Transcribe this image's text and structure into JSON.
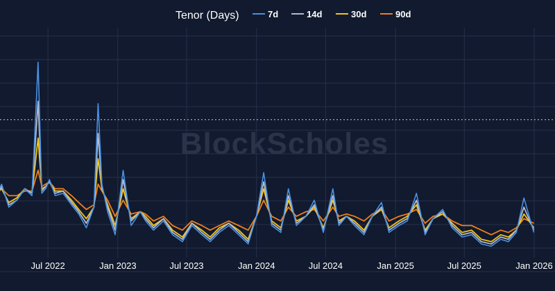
{
  "chart_data": {
    "type": "line",
    "title": "",
    "xlabel": "",
    "ylabel": "",
    "legend": {
      "title": "Tenor (Days)",
      "placement": "top-center"
    },
    "watermark": "BlockScholes",
    "grid": true,
    "y_tick_labels_visible": false,
    "reference_line": {
      "style": "dotted",
      "level": 0.6
    },
    "xlim": [
      "2022-01-01",
      "2026-01-01"
    ],
    "ylim": [
      0,
      1
    ],
    "x_ticks": [
      {
        "date": "2022-01-01",
        "label": "Jan 2022"
      },
      {
        "date": "2022-07-01",
        "label": "Jul 2022"
      },
      {
        "date": "2023-01-01",
        "label": "Jan 2023"
      },
      {
        "date": "2023-07-01",
        "label": "Jul 2023"
      },
      {
        "date": "2024-01-01",
        "label": "Jan 2024"
      },
      {
        "date": "2024-07-01",
        "label": "Jul 2024"
      },
      {
        "date": "2025-01-01",
        "label": "Jan 2025"
      },
      {
        "date": "2025-07-01",
        "label": "Jul 2025"
      },
      {
        "date": "2026-01-01",
        "label": "Jan 2026"
      }
    ],
    "dates": [
      "2022-01-01",
      "2022-01-20",
      "2022-02-10",
      "2022-03-01",
      "2022-03-20",
      "2022-04-10",
      "2022-05-01",
      "2022-05-20",
      "2022-06-05",
      "2022-06-15",
      "2022-06-25",
      "2022-07-05",
      "2022-07-20",
      "2022-08-10",
      "2022-09-01",
      "2022-09-20",
      "2022-10-10",
      "2022-10-30",
      "2022-11-10",
      "2022-11-20",
      "2022-12-05",
      "2022-12-25",
      "2023-01-15",
      "2023-02-05",
      "2023-03-01",
      "2023-03-15",
      "2023-04-05",
      "2023-05-01",
      "2023-05-25",
      "2023-06-20",
      "2023-07-15",
      "2023-08-10",
      "2023-09-01",
      "2023-09-25",
      "2023-10-20",
      "2023-11-15",
      "2023-12-10",
      "2024-01-01",
      "2024-01-20",
      "2024-02-10",
      "2024-03-05",
      "2024-03-25",
      "2024-04-15",
      "2024-05-10",
      "2024-06-01",
      "2024-06-25",
      "2024-07-20",
      "2024-08-05",
      "2024-08-25",
      "2024-09-15",
      "2024-10-10",
      "2024-11-01",
      "2024-11-25",
      "2024-12-15",
      "2025-01-10",
      "2025-02-01",
      "2025-02-25",
      "2025-03-20",
      "2025-04-10",
      "2025-05-05",
      "2025-05-30",
      "2025-06-25",
      "2025-07-20",
      "2025-08-15",
      "2025-09-10",
      "2025-10-05",
      "2025-10-25",
      "2025-11-15",
      "2025-12-05",
      "2025-12-31"
    ],
    "series": [
      {
        "name": "7d",
        "color": "#4a90e2",
        "values": [
          0.3,
          0.36,
          0.25,
          0.32,
          0.22,
          0.25,
          0.3,
          0.27,
          0.85,
          0.28,
          0.3,
          0.34,
          0.27,
          0.28,
          0.23,
          0.19,
          0.13,
          0.22,
          0.67,
          0.32,
          0.2,
          0.1,
          0.38,
          0.14,
          0.2,
          0.16,
          0.12,
          0.16,
          0.1,
          0.07,
          0.14,
          0.1,
          0.07,
          0.11,
          0.14,
          0.1,
          0.06,
          0.18,
          0.37,
          0.14,
          0.11,
          0.3,
          0.14,
          0.18,
          0.25,
          0.11,
          0.3,
          0.14,
          0.18,
          0.14,
          0.1,
          0.18,
          0.24,
          0.11,
          0.14,
          0.16,
          0.28,
          0.1,
          0.17,
          0.21,
          0.13,
          0.09,
          0.1,
          0.06,
          0.05,
          0.08,
          0.07,
          0.11,
          0.26,
          0.11
        ]
      },
      {
        "name": "14d",
        "color": "#b0bccf",
        "values": [
          0.3,
          0.34,
          0.26,
          0.31,
          0.23,
          0.25,
          0.3,
          0.28,
          0.68,
          0.29,
          0.31,
          0.33,
          0.28,
          0.29,
          0.24,
          0.2,
          0.15,
          0.22,
          0.54,
          0.31,
          0.22,
          0.12,
          0.34,
          0.16,
          0.2,
          0.17,
          0.13,
          0.17,
          0.11,
          0.08,
          0.15,
          0.11,
          0.08,
          0.12,
          0.15,
          0.11,
          0.07,
          0.18,
          0.33,
          0.15,
          0.12,
          0.27,
          0.15,
          0.18,
          0.23,
          0.12,
          0.27,
          0.15,
          0.18,
          0.15,
          0.11,
          0.18,
          0.22,
          0.12,
          0.15,
          0.17,
          0.25,
          0.11,
          0.17,
          0.2,
          0.14,
          0.1,
          0.11,
          0.07,
          0.06,
          0.09,
          0.08,
          0.12,
          0.22,
          0.12
        ]
      },
      {
        "name": "30d",
        "color": "#f5c518",
        "values": [
          0.31,
          0.33,
          0.27,
          0.3,
          0.24,
          0.26,
          0.3,
          0.28,
          0.52,
          0.3,
          0.31,
          0.33,
          0.29,
          0.29,
          0.25,
          0.21,
          0.17,
          0.22,
          0.43,
          0.3,
          0.23,
          0.14,
          0.3,
          0.17,
          0.2,
          0.18,
          0.14,
          0.17,
          0.12,
          0.09,
          0.15,
          0.12,
          0.09,
          0.13,
          0.15,
          0.12,
          0.08,
          0.18,
          0.3,
          0.16,
          0.13,
          0.25,
          0.16,
          0.18,
          0.22,
          0.13,
          0.25,
          0.16,
          0.18,
          0.16,
          0.12,
          0.18,
          0.21,
          0.13,
          0.16,
          0.18,
          0.23,
          0.12,
          0.17,
          0.19,
          0.15,
          0.11,
          0.12,
          0.08,
          0.07,
          0.1,
          0.09,
          0.12,
          0.19,
          0.13
        ]
      },
      {
        "name": "90d",
        "color": "#f07e1e",
        "values": [
          0.31,
          0.32,
          0.29,
          0.3,
          0.27,
          0.27,
          0.29,
          0.29,
          0.38,
          0.31,
          0.32,
          0.33,
          0.3,
          0.3,
          0.27,
          0.24,
          0.21,
          0.23,
          0.32,
          0.29,
          0.25,
          0.18,
          0.25,
          0.19,
          0.2,
          0.19,
          0.16,
          0.18,
          0.14,
          0.12,
          0.16,
          0.14,
          0.12,
          0.14,
          0.16,
          0.14,
          0.12,
          0.18,
          0.25,
          0.18,
          0.16,
          0.22,
          0.18,
          0.2,
          0.21,
          0.16,
          0.22,
          0.18,
          0.19,
          0.18,
          0.16,
          0.19,
          0.21,
          0.16,
          0.18,
          0.19,
          0.21,
          0.15,
          0.18,
          0.19,
          0.16,
          0.14,
          0.14,
          0.12,
          0.1,
          0.12,
          0.11,
          0.13,
          0.17,
          0.15
        ]
      }
    ]
  }
}
